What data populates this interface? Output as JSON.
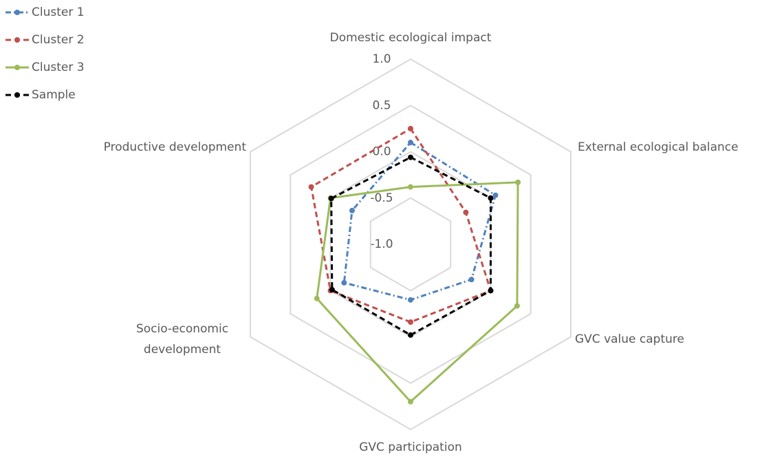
{
  "chart_data": {
    "type": "radar",
    "categories": [
      "Domestic ecological impact",
      "External ecological balance",
      "GVC value capture",
      "GVC participation",
      "Socio-economic development",
      "Productive development"
    ],
    "series": [
      {
        "name": "Cluster 1",
        "color": "#4f81bd",
        "line_style": "dashdot",
        "values": [
          0.1,
          0.06,
          -0.24,
          -0.4,
          -0.17,
          -0.27
        ]
      },
      {
        "name": "Cluster 2",
        "color": "#c0504d",
        "line_style": "dash",
        "values": [
          0.25,
          -0.31,
          0.0,
          -0.16,
          0.0,
          0.24
        ]
      },
      {
        "name": "Cluster 3",
        "color": "#9bbb59",
        "line_style": "solid",
        "values": [
          -0.38,
          0.34,
          0.33,
          0.7,
          0.17,
          0.0
        ]
      },
      {
        "name": "Sample",
        "color": "#000000",
        "line_style": "dash",
        "values": [
          -0.06,
          0.0,
          0.0,
          -0.02,
          -0.02,
          -0.01
        ]
      }
    ],
    "ylim": [
      -1.0,
      1.0
    ],
    "yticks": [
      {
        "value": -1.0,
        "label": "-1.0"
      },
      {
        "value": -0.5,
        "label": "-0.5"
      },
      {
        "value": 0.0,
        "label": "0.0"
      },
      {
        "value": 0.5,
        "label": "0.5"
      },
      {
        "value": 1.0,
        "label": "1.0"
      }
    ],
    "grid": true,
    "legend": "top-left"
  }
}
